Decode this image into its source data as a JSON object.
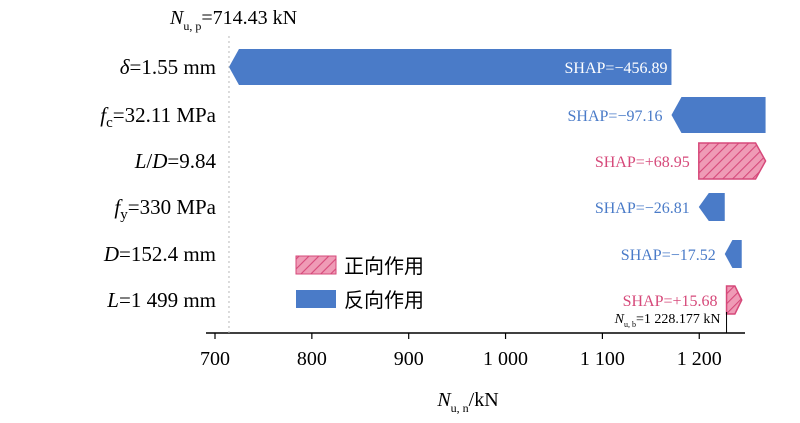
{
  "chart_data": {
    "type": "waterfall",
    "colors": {
      "negative": "#4a7bc8",
      "positive": "#d6497a",
      "positive_fill": "#ef9bb6",
      "base_line": "#b8b8b8"
    },
    "base": {
      "label_var": "N",
      "label_sub": "u, p",
      "label_rest": "=714.43 kN",
      "value": 714.43
    },
    "final": {
      "label_var": "N",
      "label_sub": "u, b",
      "label_rest": "=1 228.177 kN",
      "value": 1228.177
    },
    "features": [
      {
        "parts": [
          {
            "t": "δ",
            "i": true
          },
          {
            "t": "=1.55 mm"
          }
        ],
        "shap_text": "SHAP=−456.89",
        "shap": -456.89,
        "start": 1171.32,
        "end": 714.43,
        "sign": "negative"
      },
      {
        "parts": [
          {
            "t": "f",
            "i": true
          },
          {
            "t": "c",
            "s": true
          },
          {
            "t": "=32.11 MPa"
          }
        ],
        "shap_text": "SHAP=−97.16",
        "shap": -97.16,
        "start": 1268.48,
        "end": 1171.32,
        "sign": "negative"
      },
      {
        "parts": [
          {
            "t": "L",
            "i": true
          },
          {
            "t": "/"
          },
          {
            "t": "D",
            "i": true
          },
          {
            "t": "=9.84"
          }
        ],
        "shap_text": "SHAP=+68.95",
        "shap": 68.95,
        "start": 1199.53,
        "end": 1268.48,
        "sign": "positive"
      },
      {
        "parts": [
          {
            "t": "f",
            "i": true
          },
          {
            "t": "y",
            "s": true
          },
          {
            "t": "=330 MPa"
          }
        ],
        "shap_text": "SHAP=−26.81",
        "shap": -26.81,
        "start": 1226.34,
        "end": 1199.53,
        "sign": "negative"
      },
      {
        "parts": [
          {
            "t": "D",
            "i": true
          },
          {
            "t": "=152.4 mm"
          }
        ],
        "shap_text": "SHAP=−17.52",
        "shap": -17.52,
        "start": 1243.86,
        "end": 1226.34,
        "sign": "negative"
      },
      {
        "parts": [
          {
            "t": "L",
            "i": true
          },
          {
            "t": "=1 499 mm"
          }
        ],
        "shap_text": "SHAP=+15.68",
        "shap": 15.68,
        "start": 1228.18,
        "end": 1243.86,
        "sign": "positive"
      }
    ],
    "x_axis": {
      "ticks": [
        700,
        800,
        900,
        1000,
        1100,
        1200
      ],
      "tick_labels": [
        "700",
        "800",
        "900",
        "1 000",
        "1 100",
        "1 200"
      ],
      "range": [
        700,
        1270
      ],
      "label_var": "N",
      "label_sub": "u, n",
      "label_rest": "/kN"
    },
    "legend": {
      "position": "center-left",
      "entries": [
        {
          "label": "正向作用",
          "sign": "positive"
        },
        {
          "label": "反向作用",
          "sign": "negative"
        }
      ]
    }
  }
}
